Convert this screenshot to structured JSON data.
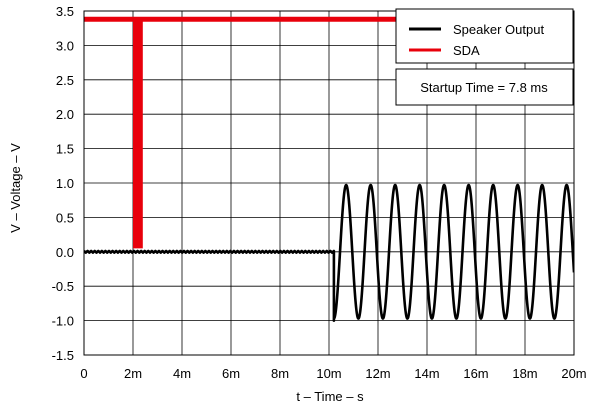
{
  "chart_data": {
    "type": "line",
    "title": "",
    "xlabel": "t – Time – s",
    "ylabel": "V – Voltage – V",
    "xlim": [
      0,
      0.02
    ],
    "ylim": [
      -1.5,
      3.5
    ],
    "x_ticks": [
      {
        "value": 0,
        "label": "0"
      },
      {
        "value": 0.002,
        "label": "2m"
      },
      {
        "value": 0.004,
        "label": "4m"
      },
      {
        "value": 0.006,
        "label": "6m"
      },
      {
        "value": 0.008,
        "label": "8m"
      },
      {
        "value": 0.01,
        "label": "10m"
      },
      {
        "value": 0.012,
        "label": "12m"
      },
      {
        "value": 0.014,
        "label": "14m"
      },
      {
        "value": 0.016,
        "label": "16m"
      },
      {
        "value": 0.018,
        "label": "18m"
      },
      {
        "value": 0.02,
        "label": "20m"
      }
    ],
    "y_ticks": [
      {
        "value": 3.5,
        "label": "3.5"
      },
      {
        "value": 3.0,
        "label": "3.0"
      },
      {
        "value": 2.5,
        "label": "2.5"
      },
      {
        "value": 2.0,
        "label": "2.0"
      },
      {
        "value": 1.5,
        "label": "1.5"
      },
      {
        "value": 1.0,
        "label": "1.0"
      },
      {
        "value": 0.5,
        "label": "0.5"
      },
      {
        "value": 0.0,
        "label": "0.0"
      },
      {
        "value": -0.5,
        "label": "-0.5"
      },
      {
        "value": -1.0,
        "label": "-1.0"
      },
      {
        "value": -1.5,
        "label": "-1.5"
      }
    ],
    "grid": true,
    "legend_position": "top-right",
    "series": [
      {
        "name": "Speaker Output",
        "color": "#000000",
        "segments": [
          {
            "kind": "flat",
            "x_start": 0,
            "x_end": 0.0102,
            "y": 0.0
          },
          {
            "kind": "sine",
            "x_start": 0.0102,
            "x_end": 0.02,
            "amplitude": 0.97,
            "frequency_hz": 1000,
            "start_value": -1.0
          }
        ]
      },
      {
        "name": "SDA",
        "color": "#e8000b",
        "segments": [
          {
            "kind": "flat",
            "x_start": 0,
            "x_end": 0.02,
            "y": 3.38
          },
          {
            "kind": "burst",
            "x_start": 0.002,
            "x_end": 0.0024,
            "y_low": 0.05,
            "y_high": 3.38
          }
        ]
      }
    ],
    "annotations": [
      {
        "text": "Startup Time = 7.8 ms"
      }
    ]
  }
}
